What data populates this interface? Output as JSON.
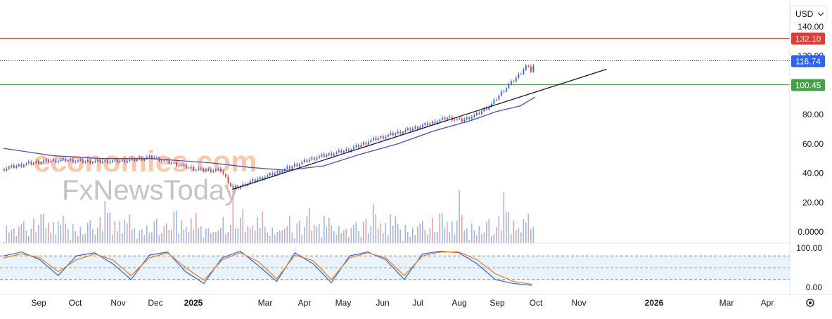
{
  "currency_selector": {
    "label": "USD"
  },
  "watermark": {
    "line1": "economies.com",
    "line2": "FxNewsToday"
  },
  "chart_data": [
    {
      "type": "candlestick",
      "title": "",
      "y_ticks": [
        "140.00",
        "120.00",
        "80.00",
        "60.00",
        "40.00",
        "20.00",
        "0.0000"
      ],
      "ylim": [
        0,
        145
      ],
      "x_ticks": [
        "Sep",
        "Oct",
        "Nov",
        "Dec",
        "2025",
        "Mar",
        "Apr",
        "May",
        "Jun",
        "Jul",
        "Aug",
        "Sep",
        "Oct",
        "Nov",
        "2026",
        "Mar",
        "Apr"
      ],
      "price_path": [
        [
          0,
          43
        ],
        [
          8,
          46
        ],
        [
          15,
          48
        ],
        [
          24,
          49
        ],
        [
          33,
          48
        ],
        [
          42,
          48
        ],
        [
          52,
          49
        ],
        [
          60,
          51
        ],
        [
          66,
          48
        ],
        [
          72,
          45
        ],
        [
          80,
          42
        ],
        [
          88,
          42
        ],
        [
          93,
          29
        ],
        [
          100,
          34
        ],
        [
          110,
          40
        ],
        [
          125,
          50
        ],
        [
          140,
          56
        ],
        [
          150,
          63
        ],
        [
          165,
          70
        ],
        [
          175,
          75
        ],
        [
          180,
          78
        ],
        [
          186,
          76
        ],
        [
          192,
          80
        ],
        [
          198,
          87
        ],
        [
          203,
          97
        ],
        [
          208,
          105
        ],
        [
          212,
          113
        ],
        [
          214,
          110
        ],
        [
          216,
          117
        ]
      ],
      "moving_average": [
        [
          0,
          57
        ],
        [
          20,
          52
        ],
        [
          40,
          50
        ],
        [
          60,
          50
        ],
        [
          85,
          47
        ],
        [
          100,
          44
        ],
        [
          115,
          42
        ],
        [
          130,
          45
        ],
        [
          145,
          53
        ],
        [
          160,
          60
        ],
        [
          175,
          69
        ],
        [
          190,
          76
        ],
        [
          200,
          82
        ],
        [
          210,
          86
        ],
        [
          216,
          92
        ]
      ],
      "trendline": {
        "start": [
          93,
          29
        ],
        "end": [
          245,
          111
        ]
      },
      "volume": [
        2,
        18,
        12,
        9,
        15,
        8,
        14,
        22,
        30,
        10,
        6,
        20,
        28,
        12,
        16,
        35,
        40,
        12,
        24,
        14,
        22,
        8,
        31,
        19,
        36,
        18,
        14
      ],
      "levels": [
        {
          "label": "132.10",
          "value": 132.1,
          "color": "#e53935"
        },
        {
          "label": "116.74",
          "value": 116.74,
          "color": "#2962ff"
        },
        {
          "label": "100.45",
          "value": 100.45,
          "color": "#43a047"
        }
      ]
    },
    {
      "type": "line",
      "title": "",
      "y_ticks": [
        "100.00",
        "0.00"
      ],
      "ylim": [
        0,
        100
      ],
      "bands": [
        80,
        50,
        20
      ],
      "series": [
        {
          "values": [
            80,
            90,
            70,
            30,
            80,
            88,
            60,
            20,
            82,
            90,
            40,
            10,
            75,
            92,
            55,
            15,
            88,
            60,
            12,
            80,
            90,
            70,
            20,
            85,
            92,
            88,
            60,
            20,
            10,
            5
          ]
        },
        {
          "values": [
            75,
            85,
            75,
            40,
            70,
            85,
            70,
            30,
            75,
            88,
            50,
            18,
            70,
            88,
            65,
            22,
            82,
            68,
            20,
            75,
            88,
            75,
            30,
            80,
            90,
            90,
            70,
            35,
            15,
            8
          ]
        }
      ]
    }
  ]
}
